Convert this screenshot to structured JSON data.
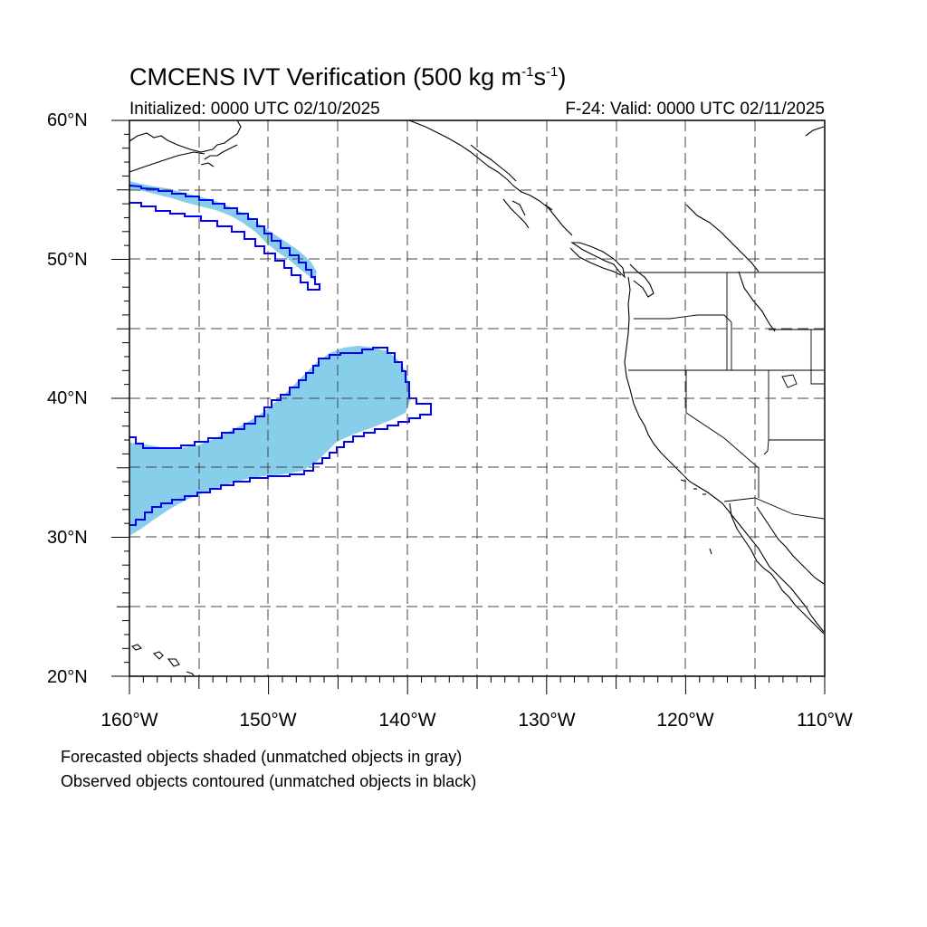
{
  "title": {
    "prefix": "CMCENS IVT Verification (500 kg m",
    "sup1": "-1",
    "mid": "s",
    "sup2": "-1",
    "suffix": ")"
  },
  "initialized": "Initialized: 0000 UTC 02/10/2025",
  "valid": "F-24: Valid: 0000 UTC 02/11/2025",
  "lat_labels": [
    "60°N",
    "50°N",
    "40°N",
    "30°N",
    "20°N"
  ],
  "lon_labels": [
    "160°W",
    "150°W",
    "140°W",
    "130°W",
    "120°W",
    "110°W"
  ],
  "notes": {
    "forecast": "Forecasted objects shaded (unmatched objects in gray)",
    "observed": "Observed objects contoured (unmatched objects in black)"
  },
  "colors": {
    "forecast_fill": "#87ceeb",
    "observed_contour": "#0000ff",
    "coastline": "#000000",
    "grid": "#444444"
  },
  "map_extent": {
    "lon_min": -160,
    "lon_max": -110,
    "lat_min": 20,
    "lat_max": 60
  }
}
